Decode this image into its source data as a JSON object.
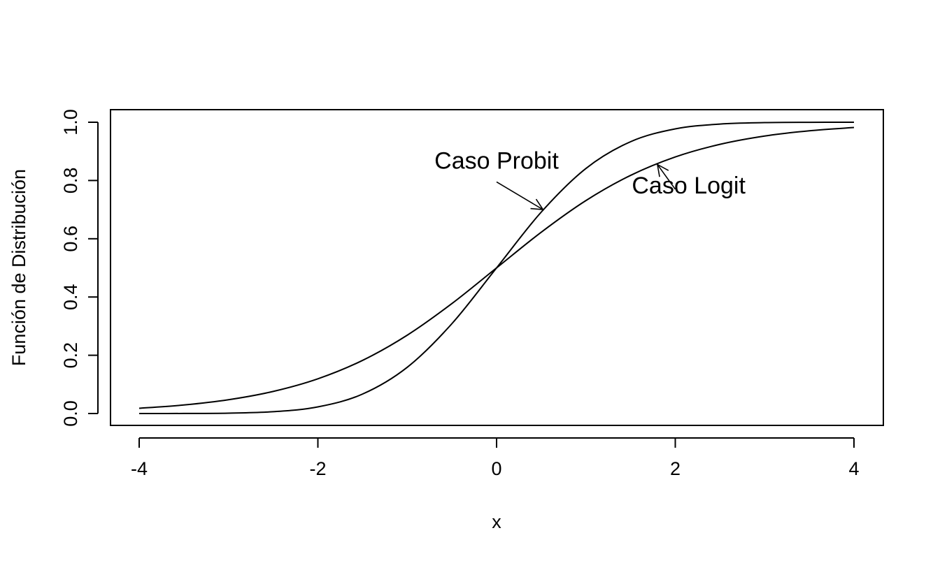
{
  "chart_data": {
    "type": "line",
    "title": "",
    "xlabel": "x",
    "ylabel": "Función de Distribución",
    "xlim": [
      -4,
      4
    ],
    "ylim": [
      0,
      1
    ],
    "xticks": [
      "-4",
      "-2",
      "0",
      "2",
      "4"
    ],
    "yticks": [
      "0.0",
      "0.2",
      "0.4",
      "0.6",
      "0.8",
      "1.0"
    ],
    "grid": false,
    "x": [
      -4.0,
      -3.5,
      -3.0,
      -2.5,
      -2.0,
      -1.5,
      -1.0,
      -0.5,
      0.0,
      0.5,
      1.0,
      1.5,
      2.0,
      2.5,
      3.0,
      3.5,
      4.0
    ],
    "series": [
      {
        "key": "probit",
        "values": [
          0.0,
          0.0002,
          0.0013,
          0.0062,
          0.0228,
          0.0668,
          0.1587,
          0.3085,
          0.5,
          0.6915,
          0.8413,
          0.9332,
          0.9772,
          0.9938,
          0.9987,
          0.9998,
          1.0
        ]
      },
      {
        "key": "logit",
        "values": [
          0.018,
          0.0293,
          0.0474,
          0.0759,
          0.1192,
          0.1824,
          0.2689,
          0.3775,
          0.5,
          0.6225,
          0.7311,
          0.8176,
          0.8808,
          0.9241,
          0.9526,
          0.9707,
          0.982
        ]
      }
    ],
    "annotations": [
      {
        "text": "Caso Probit",
        "text_x": 0.0,
        "text_y": 0.84,
        "arrow_from": [
          0.0,
          0.795
        ],
        "arrow_to": [
          0.52,
          0.7
        ]
      },
      {
        "text": "Caso Logit",
        "text_x": 2.15,
        "text_y": 0.755,
        "arrow_from": [
          2.0,
          0.77
        ],
        "arrow_to": [
          1.8,
          0.855
        ]
      }
    ]
  }
}
